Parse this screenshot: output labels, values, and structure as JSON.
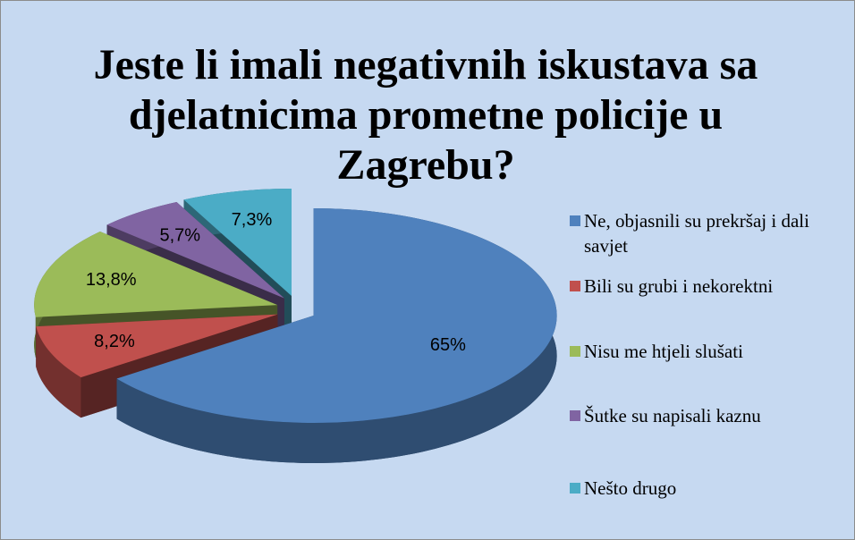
{
  "chart_data": {
    "type": "pie3d",
    "title": "Jeste li imali negativnih iskustava sa djelatnicima prometne policije u Zagrebu?",
    "categories": [
      "Ne, objasnili su prekršaj i dali savjet",
      "Bili su grubi i nekorektni",
      "Nisu me htjeli slušati",
      "Šutke su napisali kaznu",
      "Nešto drugo"
    ],
    "values": [
      65,
      8.2,
      13.8,
      5.7,
      7.3
    ],
    "value_labels": [
      "65%",
      "8,2%",
      "13,8%",
      "5,7%",
      "7,3%"
    ],
    "colors": [
      "#4f81bd",
      "#c0504d",
      "#9bbb59",
      "#8064a2",
      "#4bacc6"
    ],
    "legend": "right"
  }
}
